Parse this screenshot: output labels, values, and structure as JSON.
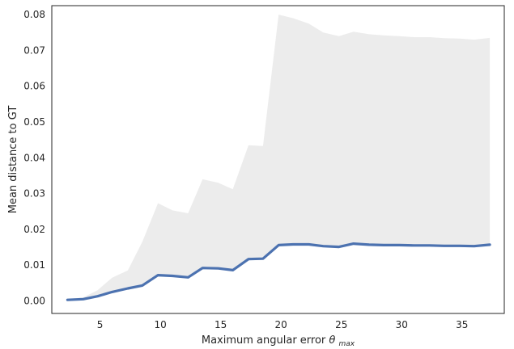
{
  "chart_data": {
    "type": "line",
    "xlabel": "Maximum angular error",
    "xlabel_symbol": "θ",
    "xlabel_subscript": "max",
    "ylabel": "Mean distance to GT",
    "xlim": [
      1.0,
      38.5
    ],
    "ylim": [
      -0.0035,
      0.0825
    ],
    "x_ticks": [
      5,
      10,
      15,
      20,
      25,
      30,
      35
    ],
    "y_ticks": [
      0.0,
      0.01,
      0.02,
      0.03,
      0.04,
      0.05,
      0.06,
      0.07,
      0.08
    ],
    "y_tick_labels": [
      "0.00",
      "0.01",
      "0.02",
      "0.03",
      "0.04",
      "0.05",
      "0.06",
      "0.07",
      "0.08"
    ],
    "grid": false,
    "series": [
      {
        "x": [
          2.3,
          3.6,
          4.8,
          6.0,
          7.3,
          8.5,
          9.8,
          11.0,
          12.3,
          13.5,
          14.8,
          16.0,
          17.3,
          18.5,
          19.8,
          21.0,
          22.3,
          23.5,
          24.8,
          26.0,
          27.3,
          28.5,
          29.8,
          31.0,
          32.3,
          33.5,
          34.8,
          36.0,
          37.3
        ],
        "values": [
          0.0003,
          0.0005,
          0.0013,
          0.0025,
          0.0035,
          0.0043,
          0.0072,
          0.007,
          0.0066,
          0.0092,
          0.0091,
          0.0086,
          0.0117,
          0.0118,
          0.0156,
          0.0158,
          0.0158,
          0.0153,
          0.0151,
          0.016,
          0.0157,
          0.0156,
          0.0156,
          0.0155,
          0.0155,
          0.0154,
          0.0154,
          0.0153,
          0.0157
        ],
        "color": "#4c72b0",
        "band_upper": [
          0.0005,
          0.001,
          0.003,
          0.0065,
          0.0085,
          0.0165,
          0.0273,
          0.0253,
          0.0245,
          0.034,
          0.033,
          0.0312,
          0.0435,
          0.0433,
          0.08,
          0.079,
          0.0775,
          0.075,
          0.074,
          0.0752,
          0.0745,
          0.0742,
          0.074,
          0.0737,
          0.0737,
          0.0734,
          0.0733,
          0.073,
          0.0735
        ],
        "band_lower": [
          0.0003,
          0.0005,
          0.0013,
          0.0025,
          0.0035,
          0.0043,
          0.0072,
          0.007,
          0.0066,
          0.0092,
          0.0091,
          0.0086,
          0.0117,
          0.0118,
          0.0156,
          0.0158,
          0.0158,
          0.0153,
          0.0151,
          0.016,
          0.0157,
          0.0156,
          0.0156,
          0.0155,
          0.0155,
          0.0154,
          0.0154,
          0.0153,
          0.0157
        ],
        "band_color": "#ececec"
      }
    ],
    "spine_color": "#262626"
  }
}
